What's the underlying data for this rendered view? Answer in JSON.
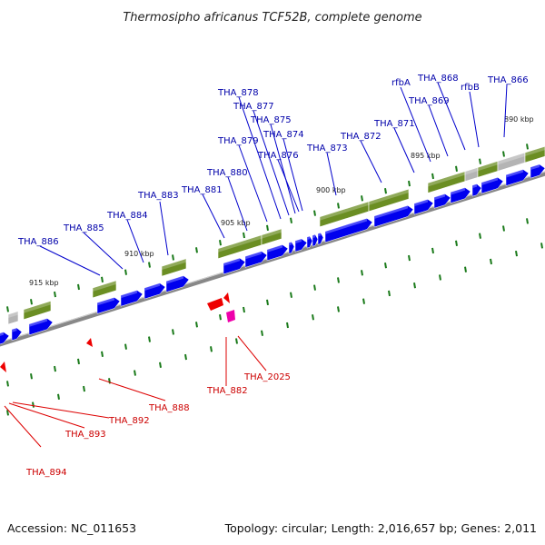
{
  "title": "Thermosipho africanus TCF52B, complete genome",
  "footer": {
    "accession": "Accession: NC_011653",
    "topology": "Topology: circular; Length: 2,016,657 bp; Genes: 2,011"
  },
  "colors": {
    "forward_gene": "#0000ee",
    "cds_feature": "#6b8e23",
    "pseudo_feature": "#b4b4b4",
    "reverse_gene": "#ee0000",
    "rna_gene": "#ee00aa",
    "forward_label": "#0000aa",
    "reverse_label": "#cc0000",
    "axis": "#777777",
    "tick": "#1a7a1a"
  },
  "tick_labels": [
    "915 kbp",
    "910 kbp",
    "905 kbp",
    "900 kbp",
    "895 kbp",
    "890 kbp"
  ],
  "forward_labels": [
    "THA_886",
    "THA_885",
    "THA_884",
    "THA_883",
    "THA_881",
    "THA_880",
    "THA_879",
    "THA_878",
    "THA_877",
    "THA_875",
    "THA_874",
    "THA_876",
    "THA_873",
    "THA_872",
    "THA_871",
    "rfbA",
    "THA_869",
    "THA_868",
    "rfbB",
    "THA_866"
  ],
  "reverse_labels": [
    "THA_894",
    "THA_893",
    "THA_892",
    "THA_888",
    "THA_882",
    "THA_2025"
  ]
}
